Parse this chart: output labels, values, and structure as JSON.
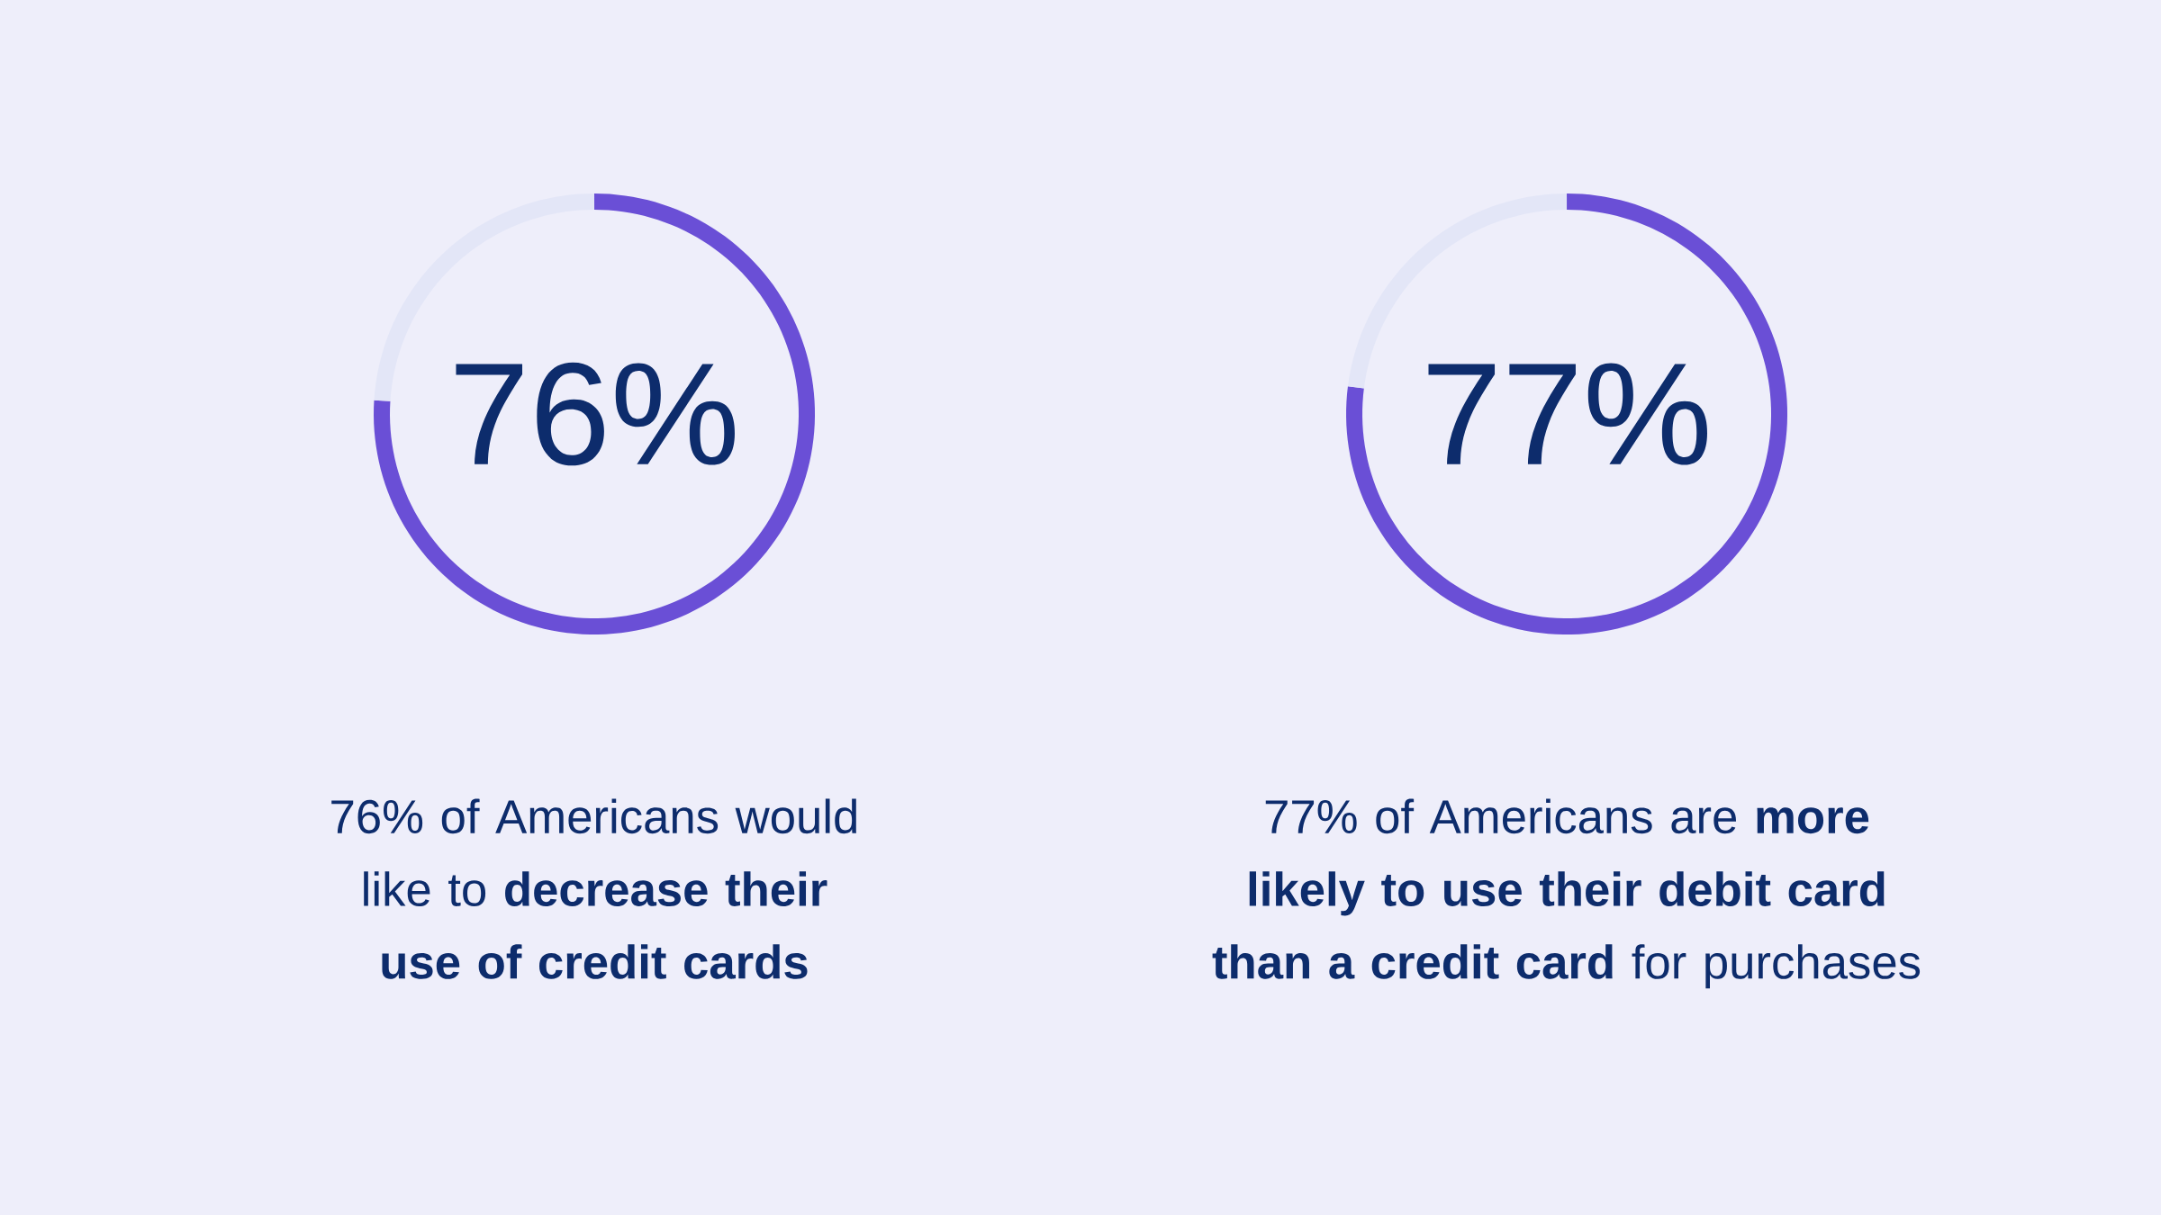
{
  "chart_data": [
    {
      "type": "donut",
      "categories": [
        null,
        null
      ],
      "values": [
        76,
        24
      ],
      "colors": [
        "#6a4fd6",
        "#e3e6f7"
      ],
      "annotations": [
        "76%",
        "76% of Americans would like to **decrease their use of credit cards**"
      ]
    },
    {
      "type": "donut",
      "categories": [
        null,
        null
      ],
      "values": [
        77,
        23
      ],
      "colors": [
        "#6a4fd6",
        "#e3e6f7"
      ],
      "annotations": [
        "77%",
        "77% of Americans are **more likely to use their debit card than a credit card** for purchases"
      ]
    }
  ]
}
